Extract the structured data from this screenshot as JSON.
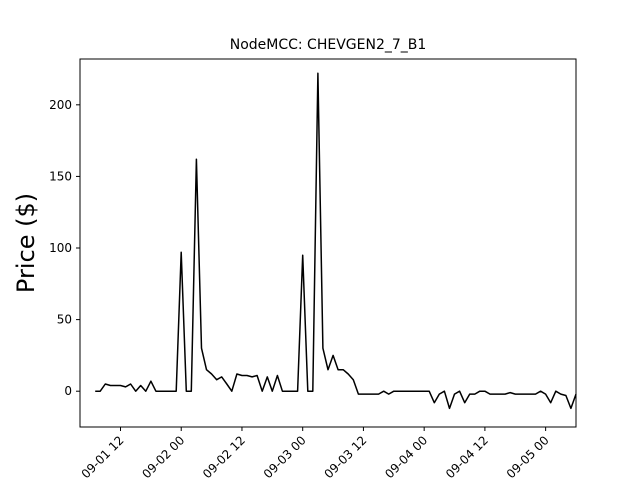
{
  "chart_data": {
    "type": "line",
    "title": "NodeMCC: CHEVGEN2_7_B1",
    "xlabel": "",
    "ylabel": "Price ($)",
    "x_axis_kind": "datetime",
    "xlim": [
      "2020-09-01 04:00",
      "2020-09-05 06:00"
    ],
    "ylim": [
      -25,
      232
    ],
    "x_ticks": [
      "2020-09-01 12:00",
      "2020-09-02 00:00",
      "2020-09-02 12:00",
      "2020-09-03 00:00",
      "2020-09-03 12:00",
      "2020-09-04 00:00",
      "2020-09-04 12:00",
      "2020-09-05 00:00"
    ],
    "x_tick_labels": [
      "09-01 12",
      "09-02 00",
      "09-02 12",
      "09-03 00",
      "09-03 12",
      "09-04 00",
      "09-04 12",
      "09-05 00"
    ],
    "y_ticks": [
      0,
      50,
      100,
      150,
      200
    ],
    "grid": false,
    "legend": "none",
    "line_color": "#000000",
    "series": [
      {
        "x": [
          "2020-09-01 07:00",
          "2020-09-01 08:00",
          "2020-09-01 09:00",
          "2020-09-01 10:00",
          "2020-09-01 11:00",
          "2020-09-01 12:00",
          "2020-09-01 13:00",
          "2020-09-01 14:00",
          "2020-09-01 15:00",
          "2020-09-01 16:00",
          "2020-09-01 17:00",
          "2020-09-01 18:00",
          "2020-09-01 19:00",
          "2020-09-01 20:00",
          "2020-09-01 21:00",
          "2020-09-01 22:00",
          "2020-09-01 23:00",
          "2020-09-02 00:00",
          "2020-09-02 01:00",
          "2020-09-02 02:00",
          "2020-09-02 03:00",
          "2020-09-02 04:00",
          "2020-09-02 05:00",
          "2020-09-02 06:00",
          "2020-09-02 07:00",
          "2020-09-02 08:00",
          "2020-09-02 09:00",
          "2020-09-02 10:00",
          "2020-09-02 11:00",
          "2020-09-02 12:00",
          "2020-09-02 13:00",
          "2020-09-02 14:00",
          "2020-09-02 15:00",
          "2020-09-02 16:00",
          "2020-09-02 17:00",
          "2020-09-02 18:00",
          "2020-09-02 19:00",
          "2020-09-02 20:00",
          "2020-09-02 21:00",
          "2020-09-02 22:00",
          "2020-09-02 23:00",
          "2020-09-03 00:00",
          "2020-09-03 01:00",
          "2020-09-03 02:00",
          "2020-09-03 03:00",
          "2020-09-03 04:00",
          "2020-09-03 05:00",
          "2020-09-03 06:00",
          "2020-09-03 07:00",
          "2020-09-03 08:00",
          "2020-09-03 09:00",
          "2020-09-03 10:00",
          "2020-09-03 11:00",
          "2020-09-03 12:00",
          "2020-09-03 13:00",
          "2020-09-03 14:00",
          "2020-09-03 15:00",
          "2020-09-03 16:00",
          "2020-09-03 17:00",
          "2020-09-03 18:00",
          "2020-09-03 19:00",
          "2020-09-03 20:00",
          "2020-09-03 21:00",
          "2020-09-03 22:00",
          "2020-09-03 23:00",
          "2020-09-04 00:00",
          "2020-09-04 01:00",
          "2020-09-04 02:00",
          "2020-09-04 03:00",
          "2020-09-04 04:00",
          "2020-09-04 05:00",
          "2020-09-04 06:00",
          "2020-09-04 07:00",
          "2020-09-04 08:00",
          "2020-09-04 09:00",
          "2020-09-04 10:00",
          "2020-09-04 11:00",
          "2020-09-04 12:00",
          "2020-09-04 13:00",
          "2020-09-04 14:00",
          "2020-09-04 15:00",
          "2020-09-04 16:00",
          "2020-09-04 17:00",
          "2020-09-04 18:00",
          "2020-09-04 19:00",
          "2020-09-04 20:00",
          "2020-09-04 21:00",
          "2020-09-04 22:00",
          "2020-09-04 23:00",
          "2020-09-05 00:00",
          "2020-09-05 01:00",
          "2020-09-05 02:00",
          "2020-09-05 03:00",
          "2020-09-05 04:00",
          "2020-09-05 05:00",
          "2020-09-05 06:00"
        ],
        "values": [
          0,
          0,
          5,
          4,
          4,
          4,
          3,
          5,
          0,
          4,
          0,
          7,
          0,
          0,
          0,
          0,
          0,
          97,
          0,
          0,
          162,
          30,
          15,
          12,
          8,
          10,
          5,
          0,
          12,
          11,
          11,
          10,
          11,
          0,
          10,
          0,
          11,
          0,
          0,
          0,
          0,
          95,
          0,
          0,
          222,
          30,
          15,
          25,
          15,
          15,
          12,
          8,
          -2,
          -2,
          -2,
          -2,
          -2,
          0,
          -2,
          0,
          0,
          0,
          0,
          0,
          0,
          0,
          0,
          -8,
          -2,
          0,
          -12,
          -2,
          0,
          -8,
          -2,
          -2,
          0,
          0,
          -2,
          -2,
          -2,
          -2,
          -1,
          -2,
          -2,
          -2,
          -2,
          -2,
          0,
          -2,
          -8,
          0,
          -2,
          -3,
          -12,
          -2
        ]
      }
    ]
  }
}
